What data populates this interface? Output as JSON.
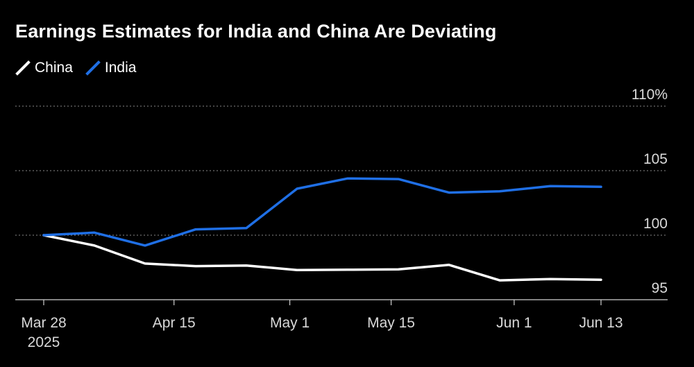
{
  "title": "Earnings Estimates for India and China Are Deviating",
  "legend": [
    {
      "name": "China",
      "color": "#ffffff"
    },
    {
      "name": "India",
      "color": "#1f6fe5"
    }
  ],
  "chart_data": {
    "type": "line",
    "title": "Earnings Estimates for India and China Are Deviating",
    "xlabel": "",
    "ylabel": "",
    "x_ticks": [
      "Mar 28",
      "Apr 15",
      "May 1",
      "May 15",
      "Jun 1",
      "Jun 13"
    ],
    "x_tick_dates": [
      "2025-03-28",
      "2025-04-15",
      "2025-05-01",
      "2025-05-15",
      "2025-06-01",
      "2025-06-13"
    ],
    "x_tick_sublabel": "2025",
    "y_ticks": [
      "110%",
      "105",
      "100",
      "95"
    ],
    "y_tick_values": [
      110,
      105,
      100,
      95
    ],
    "ylim": [
      94.5,
      110
    ],
    "xlim": [
      "2025-03-28",
      "2025-06-20"
    ],
    "grid": "horizontal dashed",
    "legend_position": "top-left",
    "series": [
      {
        "name": "China",
        "color": "#ffffff",
        "points": [
          {
            "x": "2025-03-28",
            "y": 100.0
          },
          {
            "x": "2025-04-04",
            "y": 99.2
          },
          {
            "x": "2025-04-11",
            "y": 97.8
          },
          {
            "x": "2025-04-18",
            "y": 97.6
          },
          {
            "x": "2025-04-25",
            "y": 97.65
          },
          {
            "x": "2025-05-02",
            "y": 97.3
          },
          {
            "x": "2025-05-09",
            "y": 97.32
          },
          {
            "x": "2025-05-16",
            "y": 97.35
          },
          {
            "x": "2025-05-23",
            "y": 97.7
          },
          {
            "x": "2025-05-30",
            "y": 96.5
          },
          {
            "x": "2025-06-06",
            "y": 96.6
          },
          {
            "x": "2025-06-13",
            "y": 96.55
          }
        ]
      },
      {
        "name": "India",
        "color": "#1f6fe5",
        "points": [
          {
            "x": "2025-03-28",
            "y": 100.0
          },
          {
            "x": "2025-04-04",
            "y": 100.2
          },
          {
            "x": "2025-04-11",
            "y": 99.2
          },
          {
            "x": "2025-04-18",
            "y": 100.45
          },
          {
            "x": "2025-04-25",
            "y": 100.55
          },
          {
            "x": "2025-05-02",
            "y": 103.6
          },
          {
            "x": "2025-05-09",
            "y": 104.4
          },
          {
            "x": "2025-05-16",
            "y": 104.35
          },
          {
            "x": "2025-05-23",
            "y": 103.3
          },
          {
            "x": "2025-05-30",
            "y": 103.4
          },
          {
            "x": "2025-06-06",
            "y": 103.8
          },
          {
            "x": "2025-06-13",
            "y": 103.75
          }
        ]
      }
    ]
  }
}
